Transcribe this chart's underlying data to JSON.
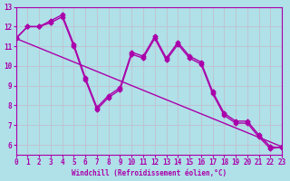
{
  "xlabel": "Windchill (Refroidissement éolien,°C)",
  "bg_color": "#b0e0e8",
  "line_color": "#aa00aa",
  "grid_color": "#c0c0d0",
  "xlim": [
    0,
    23
  ],
  "ylim": [
    5.5,
    13
  ],
  "yticks": [
    6,
    7,
    8,
    9,
    10,
    11,
    12,
    13
  ],
  "xticks": [
    0,
    1,
    2,
    3,
    4,
    5,
    6,
    7,
    8,
    9,
    10,
    11,
    12,
    13,
    14,
    15,
    16,
    17,
    18,
    19,
    20,
    21,
    22,
    23
  ],
  "line1_x": [
    0,
    1,
    2,
    3,
    4,
    5,
    6,
    7,
    8,
    9,
    10,
    11,
    12,
    13,
    14,
    15,
    16,
    17,
    18,
    19,
    20,
    21,
    22,
    23
  ],
  "line1_y": [
    11.4,
    12.0,
    12.0,
    12.3,
    12.6,
    11.1,
    9.4,
    7.9,
    8.5,
    8.9,
    10.7,
    10.5,
    11.5,
    10.4,
    11.2,
    10.5,
    10.2,
    8.7,
    7.6,
    7.2,
    7.2,
    6.5,
    5.9,
    5.85
  ],
  "line2_x": [
    0,
    1,
    2,
    3,
    4,
    5,
    6,
    7,
    8,
    9,
    10,
    11,
    12,
    13,
    14,
    15,
    16,
    17,
    18,
    19,
    20,
    21,
    22,
    23
  ],
  "line2_y": [
    11.4,
    12.0,
    12.0,
    12.2,
    12.5,
    11.0,
    9.3,
    7.8,
    8.4,
    8.8,
    10.6,
    10.4,
    11.4,
    10.3,
    11.1,
    10.4,
    10.1,
    8.6,
    7.5,
    7.1,
    7.1,
    6.4,
    5.8,
    5.9
  ],
  "line3_x": [
    0,
    23
  ],
  "line3_y": [
    11.4,
    5.9
  ],
  "marker": "D",
  "markersize": 2.5,
  "linewidth": 1.0
}
